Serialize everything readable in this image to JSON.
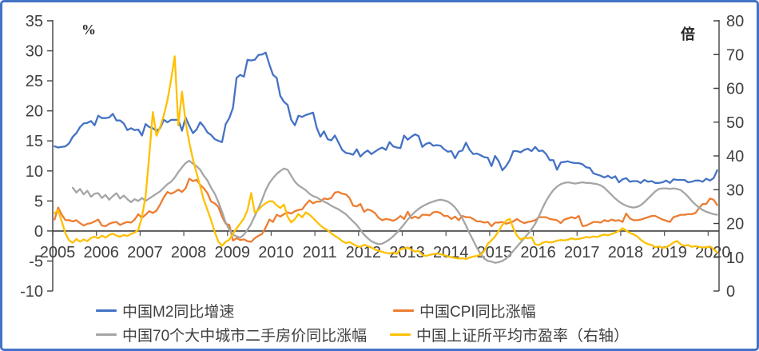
{
  "chart_data": {
    "type": "line",
    "title": "",
    "x_start_year": 2005,
    "points_per_year": 12,
    "x_tick_labels": [
      "2005",
      "2006",
      "2007",
      "2008",
      "2009",
      "2010",
      "2011",
      "2012",
      "2013",
      "2014",
      "2015",
      "2016",
      "2017",
      "2018",
      "2019",
      "2020"
    ],
    "left_axis": {
      "unit_label": "%",
      "min": -10,
      "max": 35,
      "tick_step": 5
    },
    "right_axis": {
      "unit_label": "倍",
      "min": 0,
      "max": 80,
      "tick_step": 10
    },
    "grid": false,
    "legend_position": "bottom",
    "frame_color": "#4472C4",
    "axis_color": "#404040",
    "zero_line_color": "#595959",
    "series": [
      {
        "name": "中国M2同比增速",
        "color": "#4472C4",
        "axis": "left",
        "values": [
          14.1,
          13.9,
          14.0,
          14.1,
          14.6,
          15.7,
          16.3,
          17.3,
          17.9,
          18.0,
          18.3,
          17.6,
          19.2,
          18.8,
          18.8,
          18.9,
          19.5,
          18.4,
          18.4,
          17.9,
          16.8,
          17.1,
          16.8,
          16.9,
          15.9,
          17.8,
          17.3,
          17.1,
          16.7,
          17.1,
          18.5,
          18.1,
          18.5,
          18.5,
          18.5,
          16.7,
          18.9,
          17.5,
          16.3,
          16.9,
          18.1,
          17.4,
          16.4,
          16.0,
          15.3,
          15.0,
          14.8,
          17.8,
          18.8,
          20.5,
          25.5,
          26.0,
          25.7,
          28.5,
          28.4,
          28.5,
          29.3,
          29.4,
          29.7,
          27.7,
          26.0,
          25.5,
          22.5,
          21.5,
          21.0,
          18.5,
          17.6,
          19.2,
          19.0,
          19.3,
          19.5,
          19.7,
          17.2,
          15.7,
          16.6,
          15.3,
          15.1,
          15.9,
          14.7,
          13.5,
          13.0,
          12.9,
          12.7,
          13.6,
          12.4,
          13.0,
          13.4,
          12.8,
          13.2,
          13.6,
          13.9,
          13.5,
          14.8,
          14.1,
          13.9,
          13.8,
          15.9,
          15.2,
          15.7,
          16.1,
          15.8,
          14.0,
          14.5,
          14.7,
          14.2,
          14.3,
          14.2,
          13.6,
          13.2,
          13.3,
          12.1,
          13.2,
          13.4,
          14.7,
          13.5,
          12.8,
          12.9,
          12.6,
          12.3,
          12.2,
          10.8,
          12.5,
          11.6,
          10.1,
          10.8,
          11.8,
          13.3,
          13.3,
          13.1,
          13.5,
          13.7,
          13.3,
          14.0,
          13.3,
          13.4,
          12.8,
          11.8,
          11.8,
          10.2,
          11.4,
          11.5,
          11.6,
          11.4,
          11.3,
          11.3,
          11.1,
          10.6,
          10.5,
          9.6,
          9.4,
          9.2,
          8.9,
          9.2,
          8.8,
          9.1,
          8.1,
          8.6,
          8.8,
          8.2,
          8.3,
          8.3,
          8.0,
          8.5,
          8.2,
          8.3,
          8.0,
          8.0,
          8.1,
          8.4,
          8.0,
          8.6,
          8.5,
          8.5,
          8.5,
          8.1,
          8.2,
          8.4,
          8.4,
          8.2,
          8.7,
          8.4,
          8.8,
          10.1
        ]
      },
      {
        "name": "中国CPI同比涨幅",
        "color": "#ED7D31",
        "axis": "left",
        "values": [
          1.9,
          3.9,
          2.7,
          1.8,
          1.8,
          1.6,
          1.8,
          1.3,
          0.9,
          1.2,
          1.3,
          1.6,
          1.9,
          0.9,
          0.8,
          1.2,
          1.4,
          1.5,
          1.0,
          1.3,
          1.5,
          1.4,
          1.9,
          2.8,
          2.2,
          2.7,
          3.3,
          3.0,
          3.4,
          4.4,
          5.6,
          6.5,
          6.2,
          6.5,
          6.9,
          6.5,
          7.1,
          8.7,
          8.3,
          8.5,
          7.7,
          7.1,
          6.3,
          4.9,
          4.6,
          4.0,
          2.4,
          1.2,
          1.0,
          -1.6,
          -1.2,
          -1.5,
          -1.4,
          -1.7,
          -1.8,
          -1.2,
          -0.8,
          -0.5,
          0.6,
          1.9,
          1.5,
          2.7,
          2.4,
          2.8,
          3.1,
          2.9,
          3.3,
          3.5,
          3.6,
          4.4,
          5.1,
          4.6,
          4.9,
          4.9,
          5.4,
          5.3,
          5.5,
          6.4,
          6.5,
          6.2,
          6.1,
          5.5,
          4.2,
          4.1,
          4.5,
          3.2,
          3.6,
          3.4,
          3.0,
          2.2,
          1.8,
          2.0,
          1.9,
          1.7,
          2.0,
          2.5,
          2.0,
          3.2,
          2.1,
          2.4,
          2.1,
          2.7,
          2.7,
          2.6,
          3.1,
          3.2,
          3.0,
          2.5,
          2.5,
          2.0,
          2.4,
          1.8,
          2.5,
          2.3,
          2.3,
          2.0,
          1.6,
          1.6,
          1.4,
          1.5,
          0.8,
          1.4,
          1.4,
          1.5,
          1.2,
          1.4,
          1.6,
          2.0,
          1.6,
          1.3,
          1.5,
          1.6,
          1.8,
          2.3,
          2.3,
          2.3,
          2.0,
          1.9,
          1.8,
          1.3,
          1.9,
          2.1,
          2.3,
          2.1,
          2.5,
          0.8,
          0.9,
          1.2,
          1.5,
          1.5,
          1.4,
          1.8,
          1.6,
          1.9,
          1.7,
          1.8,
          1.5,
          2.9,
          2.1,
          1.8,
          1.8,
          1.9,
          2.1,
          2.3,
          2.5,
          2.5,
          2.2,
          1.9,
          1.7,
          1.5,
          2.3,
          2.5,
          2.7,
          2.7,
          2.8,
          2.8,
          3.0,
          3.8,
          4.5,
          4.5,
          5.4,
          5.2,
          4.3
        ]
      },
      {
        "name": "中国70个大中城市二手房价同比涨幅",
        "color": "#A5A5A5",
        "axis": "left",
        "values": [
          null,
          null,
          null,
          null,
          null,
          7.2,
          6.4,
          7.0,
          6.1,
          6.7,
          5.7,
          6.2,
          6.3,
          5.5,
          6.0,
          5.2,
          5.8,
          6.3,
          5.4,
          5.9,
          5.3,
          4.8,
          5.3,
          5.0,
          5.5,
          5.0,
          5.4,
          5.8,
          6.2,
          6.6,
          7.2,
          7.8,
          8.2,
          8.9,
          9.8,
          10.6,
          11.3,
          11.7,
          11.2,
          10.8,
          10.2,
          9.2,
          8.4,
          7.2,
          6.2,
          4.8,
          3.2,
          1.4,
          0.2,
          -0.6,
          -0.9,
          -1.1,
          -0.6,
          0.2,
          1.2,
          2.5,
          3.8,
          5.2,
          6.8,
          8.0,
          8.8,
          9.5,
          10.0,
          10.4,
          10.2,
          9.2,
          8.2,
          7.6,
          7.2,
          6.8,
          6.2,
          5.8,
          5.6,
          5.2,
          4.9,
          4.6,
          4.2,
          3.9,
          3.6,
          3.2,
          2.8,
          2.2,
          1.6,
          1.0,
          0.2,
          -0.6,
          -1.2,
          -1.7,
          -2.0,
          -2.2,
          -2.1,
          -1.8,
          -1.4,
          -0.9,
          -0.3,
          0.4,
          1.1,
          1.9,
          2.6,
          3.2,
          3.7,
          4.1,
          4.4,
          4.7,
          4.9,
          5.1,
          5.2,
          5.1,
          4.9,
          4.5,
          3.9,
          3.1,
          2.1,
          0.9,
          -0.4,
          -1.6,
          -2.8,
          -3.8,
          -4.6,
          -5.0,
          -5.1,
          -5.3,
          -5.2,
          -5.0,
          -4.6,
          -4.0,
          -3.3,
          -2.6,
          -1.9,
          -1.2,
          -0.5,
          0.3,
          1.2,
          2.4,
          3.8,
          5.0,
          6.0,
          6.8,
          7.4,
          7.8,
          8.0,
          8.1,
          8.0,
          7.9,
          8.0,
          8.1,
          8.0,
          8.0,
          7.9,
          7.8,
          7.6,
          7.2,
          6.6,
          6.0,
          5.4,
          4.9,
          4.5,
          4.2,
          4.0,
          3.9,
          4.0,
          4.3,
          4.8,
          5.4,
          6.0,
          6.6,
          7.0,
          7.1,
          7.1,
          7.0,
          7.1,
          7.0,
          6.8,
          6.3,
          5.7,
          5.0,
          4.4,
          3.9,
          3.5,
          3.2,
          3.0,
          2.8,
          2.7
        ]
      },
      {
        "name": "中国上证所平均市盈率（右轴）",
        "color": "#FFC000",
        "axis": "right",
        "values": [
          23.0,
          24.0,
          20.5,
          17.0,
          15.0,
          14.3,
          15.4,
          14.6,
          15.3,
          14.8,
          15.7,
          16.1,
          15.6,
          16.4,
          15.8,
          16.6,
          17.0,
          16.4,
          16.1,
          16.6,
          16.3,
          16.9,
          17.3,
          18.1,
          22.0,
          28.0,
          40.0,
          53.0,
          46.0,
          48.5,
          52.0,
          56.5,
          62.5,
          69.5,
          49.0,
          59.0,
          50.0,
          44.0,
          39.0,
          35.0,
          31.0,
          27.0,
          24.0,
          21.0,
          17.5,
          14.6,
          13.4,
          14.6,
          15.2,
          17.0,
          18.5,
          20.0,
          21.5,
          24.0,
          29.0,
          23.2,
          24.0,
          25.2,
          26.0,
          26.6,
          26.5,
          25.4,
          24.6,
          25.6,
          22.0,
          20.3,
          21.3,
          22.8,
          21.8,
          23.3,
          22.6,
          21.6,
          20.5,
          19.4,
          18.6,
          18.0,
          17.1,
          16.3,
          15.7,
          14.8,
          14.2,
          14.5,
          13.9,
          13.3,
          13.1,
          13.7,
          13.3,
          12.9,
          12.3,
          11.9,
          11.6,
          11.3,
          11.1,
          11.4,
          11.0,
          12.3,
          12.6,
          12.9,
          12.2,
          11.7,
          11.9,
          10.7,
          10.4,
          10.7,
          10.9,
          11.1,
          10.9,
          10.6,
          10.3,
          10.0,
          9.8,
          9.6,
          9.7,
          9.5,
          9.9,
          10.2,
          10.4,
          10.8,
          11.8,
          14.0,
          15.0,
          16.2,
          17.8,
          19.6,
          20.8,
          21.4,
          18.6,
          16.4,
          15.2,
          15.8,
          15.6,
          15.9,
          13.8,
          13.6,
          14.3,
          14.6,
          14.4,
          14.5,
          14.9,
          15.1,
          15.0,
          15.2,
          15.6,
          15.3,
          15.4,
          15.7,
          16.0,
          15.8,
          16.2,
          16.0,
          16.4,
          16.7,
          16.5,
          16.9,
          17.3,
          17.8,
          18.6,
          17.9,
          17.2,
          16.8,
          16.2,
          15.2,
          14.4,
          13.9,
          13.6,
          13.0,
          13.2,
          12.8,
          13.0,
          13.6,
          14.4,
          14.8,
          13.8,
          13.4,
          13.6,
          13.1,
          13.3,
          13.1,
          12.9,
          13.0,
          13.2,
          12.4,
          11.4
        ]
      }
    ]
  }
}
